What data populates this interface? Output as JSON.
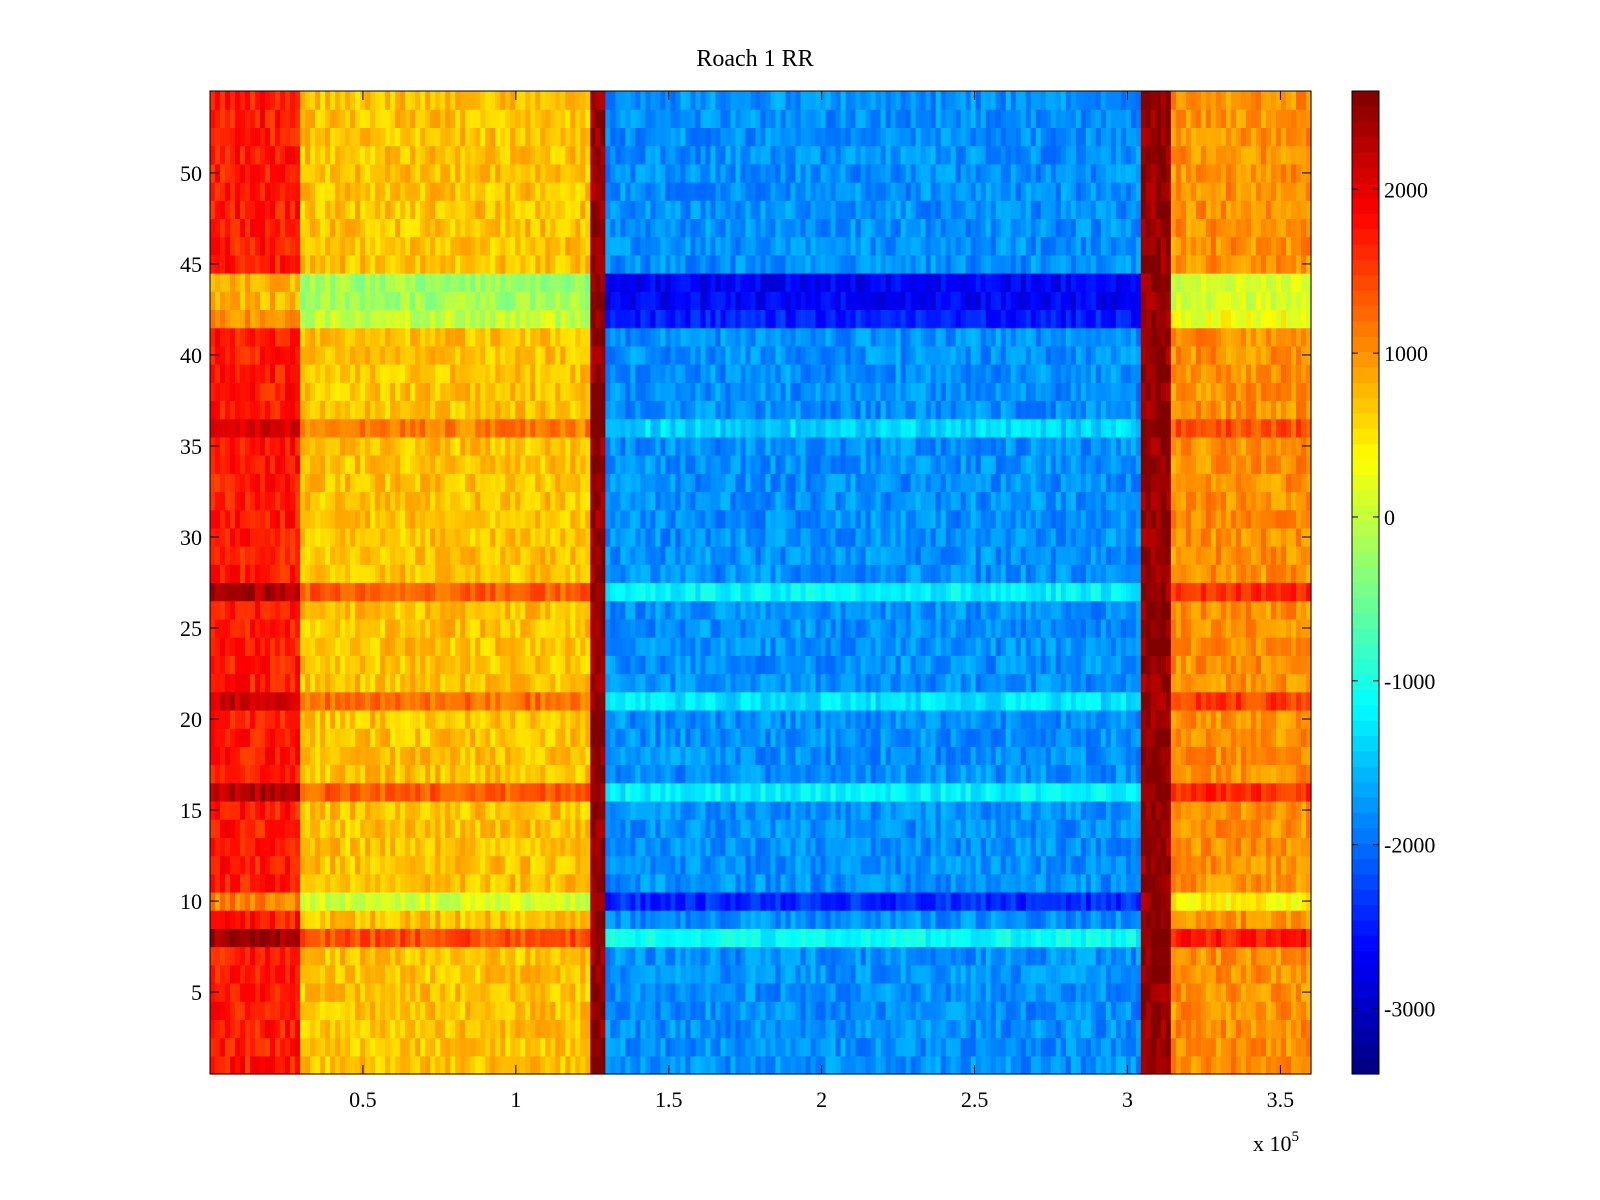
{
  "chart_data": {
    "type": "heatmap",
    "title": "Roach 1 RR",
    "xlabel": "",
    "ylabel": "",
    "x_multiplier_label": {
      "base": "x 10",
      "exponent": "5"
    },
    "xlim": [
      0,
      360000
    ],
    "ylim": [
      0.5,
      54.5
    ],
    "x_ticks": [
      50000,
      100000,
      150000,
      200000,
      250000,
      300000,
      350000
    ],
    "x_tick_labels": [
      "0.5",
      "1",
      "1.5",
      "2",
      "2.5",
      "3",
      "3.5"
    ],
    "y_ticks": [
      5,
      10,
      15,
      20,
      25,
      30,
      35,
      40,
      45,
      50
    ],
    "y_tick_labels": [
      "5",
      "10",
      "15",
      "20",
      "25",
      "30",
      "35",
      "40",
      "45",
      "50"
    ],
    "colormap": "jet",
    "clim": [
      -3400,
      2600
    ],
    "colorbar": {
      "ticks": [
        -3000,
        -2000,
        -1000,
        0,
        1000,
        2000
      ],
      "tick_labels": [
        "-3000",
        "-2000",
        "-1000",
        "0",
        "1000",
        "2000"
      ]
    },
    "regions": [
      {
        "x_range": [
          0,
          30000
        ],
        "approx_value": 1700
      },
      {
        "x_range": [
          30000,
          125000
        ],
        "approx_value": 700
      },
      {
        "x_range": [
          125000,
          130000
        ],
        "approx_value": 2500
      },
      {
        "x_range": [
          130000,
          305000
        ],
        "approx_value": -1800
      },
      {
        "x_range": [
          305000,
          315000
        ],
        "approx_value": 2500
      },
      {
        "x_range": [
          315000,
          360000
        ],
        "approx_value": 1000
      }
    ],
    "row_offsets": [
      {
        "row": 8,
        "value": 700
      },
      {
        "row": 27,
        "value": 600
      },
      {
        "row": 16,
        "value": 600
      },
      {
        "row": 21,
        "value": 500
      },
      {
        "row": 43,
        "value": -900
      },
      {
        "row": 44,
        "value": -900
      },
      {
        "row": 42,
        "value": -700
      },
      {
        "row": 10,
        "value": -600
      },
      {
        "row": 36,
        "value": 400
      }
    ]
  }
}
